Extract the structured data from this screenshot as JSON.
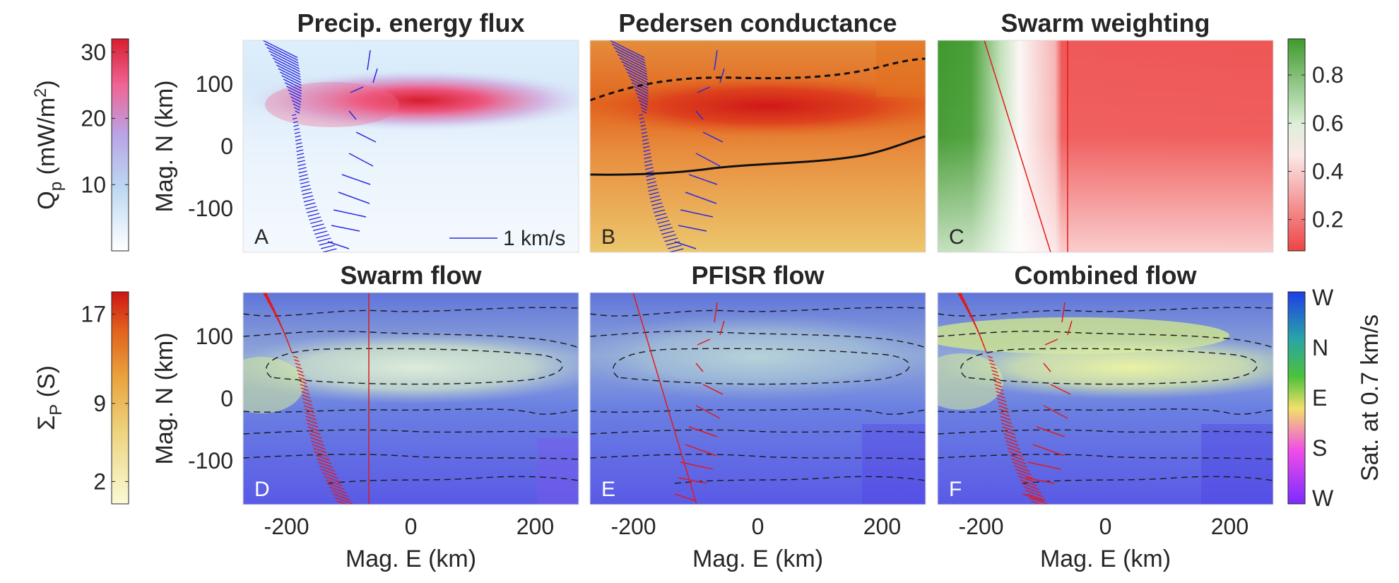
{
  "chart_data": [
    {
      "type": "heatmap",
      "panel_label": "A",
      "title": "Precip. energy flux",
      "xlabel": "",
      "ylabel": "Mag. N (km)",
      "xlim": [
        -270,
        270
      ],
      "ylim": [
        -170,
        170
      ],
      "xticks": [],
      "yticks": [
        100,
        0,
        -100
      ],
      "colormap": "white-blue-red",
      "legend_text": "1 km/s"
    },
    {
      "type": "heatmap",
      "panel_label": "B",
      "title": "Pedersen conductance",
      "xlim": [
        -270,
        270
      ],
      "ylim": [
        -170,
        170
      ],
      "xticks": [],
      "yticks": [],
      "colormap": "yellow-orange-red"
    },
    {
      "type": "heatmap",
      "panel_label": "C",
      "title": "Swarm weighting",
      "xlim": [
        -270,
        270
      ],
      "ylim": [
        -170,
        170
      ],
      "xticks": [],
      "yticks": [],
      "colormap": "green-white-red"
    },
    {
      "type": "heatmap",
      "panel_label": "D",
      "title": "Swarm flow",
      "xlabel": "Mag. E (km)",
      "ylabel": "Mag. N (km)",
      "xlim": [
        -270,
        270
      ],
      "ylim": [
        -170,
        170
      ],
      "xticks": [
        -200,
        0,
        200
      ],
      "yticks": [
        100,
        0,
        -100
      ],
      "colormap": "direction-hue"
    },
    {
      "type": "heatmap",
      "panel_label": "E",
      "title": "PFISR flow",
      "xlabel": "Mag. E (km)",
      "xlim": [
        -270,
        270
      ],
      "ylim": [
        -170,
        170
      ],
      "xticks": [
        -200,
        0,
        200
      ],
      "yticks": [],
      "colormap": "direction-hue"
    },
    {
      "type": "heatmap",
      "panel_label": "F",
      "title": "Combined flow",
      "xlabel": "Mag. E (km)",
      "xlim": [
        -270,
        270
      ],
      "ylim": [
        -170,
        170
      ],
      "xticks": [
        -200,
        0,
        200
      ],
      "yticks": [],
      "colormap": "direction-hue"
    }
  ],
  "colorbars": {
    "qp": {
      "label": "Q_p (mW/m^2)",
      "label_main": "Q",
      "label_sub": "p",
      "label_rest": " (mW/m",
      "label_sup": "2",
      "label_close": ")",
      "range": [
        0,
        32
      ],
      "ticks": [
        "30",
        "20",
        "10"
      ],
      "tick_values": [
        30,
        20,
        10
      ]
    },
    "sigma": {
      "label": "Σ_P (S)",
      "label_main": "Σ",
      "label_sub": "P",
      "label_rest": " (S)",
      "range": [
        0,
        19
      ],
      "ticks": [
        "17",
        "9",
        "2"
      ],
      "tick_values": [
        17,
        9,
        2
      ]
    },
    "weight": {
      "range": [
        0.07,
        0.95
      ],
      "ticks": [
        "0.8",
        "0.6",
        "0.4",
        "0.2"
      ],
      "tick_values": [
        0.8,
        0.6,
        0.4,
        0.2
      ]
    },
    "direction": {
      "label": "Sat. at 0.7 km/s",
      "ticks": [
        "W",
        "N",
        "E",
        "S",
        "W"
      ]
    }
  },
  "colors": {
    "vector_blue": "#2a2ae0",
    "vector_red": "#e01b1b",
    "swarm_green": "#3f9a2c",
    "weight_red": "#ef4d4d"
  }
}
